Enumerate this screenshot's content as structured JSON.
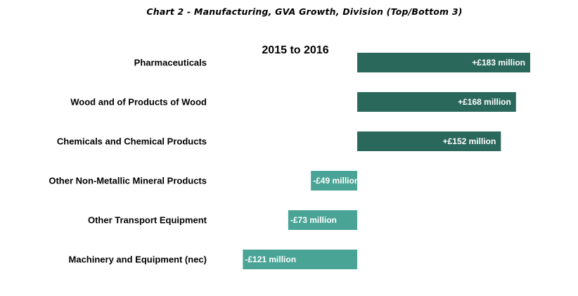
{
  "title": "Chart 2 - Manufacturing, GVA Growth, Division (Top/Bottom 3)",
  "subtitle": "2015 to 2016",
  "colors": {
    "positive": "#2b685c",
    "negative": "#4aa496"
  },
  "chart_data": {
    "type": "bar",
    "orientation": "horizontal",
    "title": "Chart 2 - Manufacturing, GVA Growth, Division (Top/Bottom 3)",
    "subtitle": "2015 to 2016",
    "categories": [
      "Pharmaceuticals",
      "Wood and of Products of Wood",
      "Chemicals and Chemical Products",
      "Other Non-Metallic Mineral Products",
      "Other Transport Equipment",
      "Machinery and Equipment (nec)"
    ],
    "values": [
      183,
      168,
      152,
      -49,
      -73,
      -121
    ],
    "data_labels": [
      "+£183 million",
      "+£168 million",
      "+£152 million",
      "-£49 million",
      "-£73 million",
      "-£121 million"
    ],
    "unit": "£ million",
    "xlim": [
      -121,
      183
    ],
    "grid": false,
    "legend": "none"
  }
}
